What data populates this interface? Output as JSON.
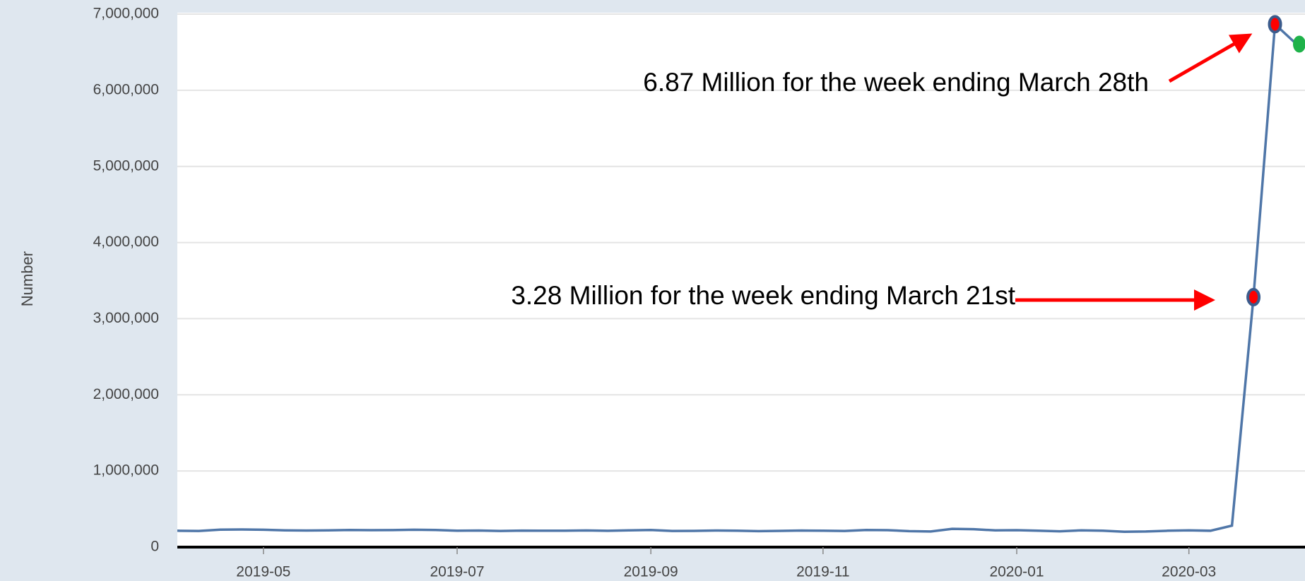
{
  "chart_data": {
    "type": "line",
    "ylabel": "Number",
    "categories": [
      null,
      null,
      null,
      null,
      "2019-05",
      null,
      null,
      null,
      null,
      null,
      null,
      null,
      null,
      "2019-07",
      null,
      null,
      null,
      null,
      null,
      null,
      null,
      null,
      "2019-09",
      null,
      null,
      null,
      null,
      null,
      null,
      null,
      "2019-11",
      null,
      null,
      null,
      null,
      null,
      null,
      null,
      null,
      "2020-01",
      null,
      null,
      null,
      null,
      null,
      null,
      null,
      "2020-03",
      null,
      null,
      null,
      null,
      null
    ],
    "series": [
      {
        "color": "#4f76a8",
        "values": [
          215000,
          212000,
          230000,
          232000,
          228000,
          220000,
          218000,
          220000,
          225000,
          222000,
          224000,
          228000,
          225000,
          215000,
          218000,
          212000,
          217000,
          215000,
          216000,
          219000,
          214000,
          220000,
          225000,
          212000,
          213000,
          218000,
          215000,
          210000,
          213000,
          218000,
          215000,
          212000,
          225000,
          222000,
          210000,
          205000,
          240000,
          235000,
          220000,
          222000,
          216000,
          208000,
          220000,
          215000,
          202000,
          205000,
          215000,
          220000,
          215000,
          282000,
          3283000,
          6867000,
          6606000
        ]
      }
    ],
    "highlight_color": "#ff0000",
    "last_point_color": "#1fb24a",
    "annotations": [
      "6.87 Million for the week ending March 28th",
      "3.28 Million for the week ending March 21st"
    ],
    "ylim": [
      0,
      7000000
    ],
    "yticks": [
      0,
      {
        "value": 1000000,
        "label": "1,000,000"
      },
      {
        "value": 2000000,
        "label": "2,000,000"
      },
      {
        "value": 3000000,
        "label": "3,000,000"
      },
      {
        "value": 4000000,
        "label": "4,000,000"
      },
      {
        "value": 5000000,
        "label": "5,000,000"
      },
      {
        "value": 6000000,
        "label": "6,000,000"
      },
      {
        "value": 7000000,
        "label": "7,000,000"
      }
    ],
    "grid": true
  }
}
